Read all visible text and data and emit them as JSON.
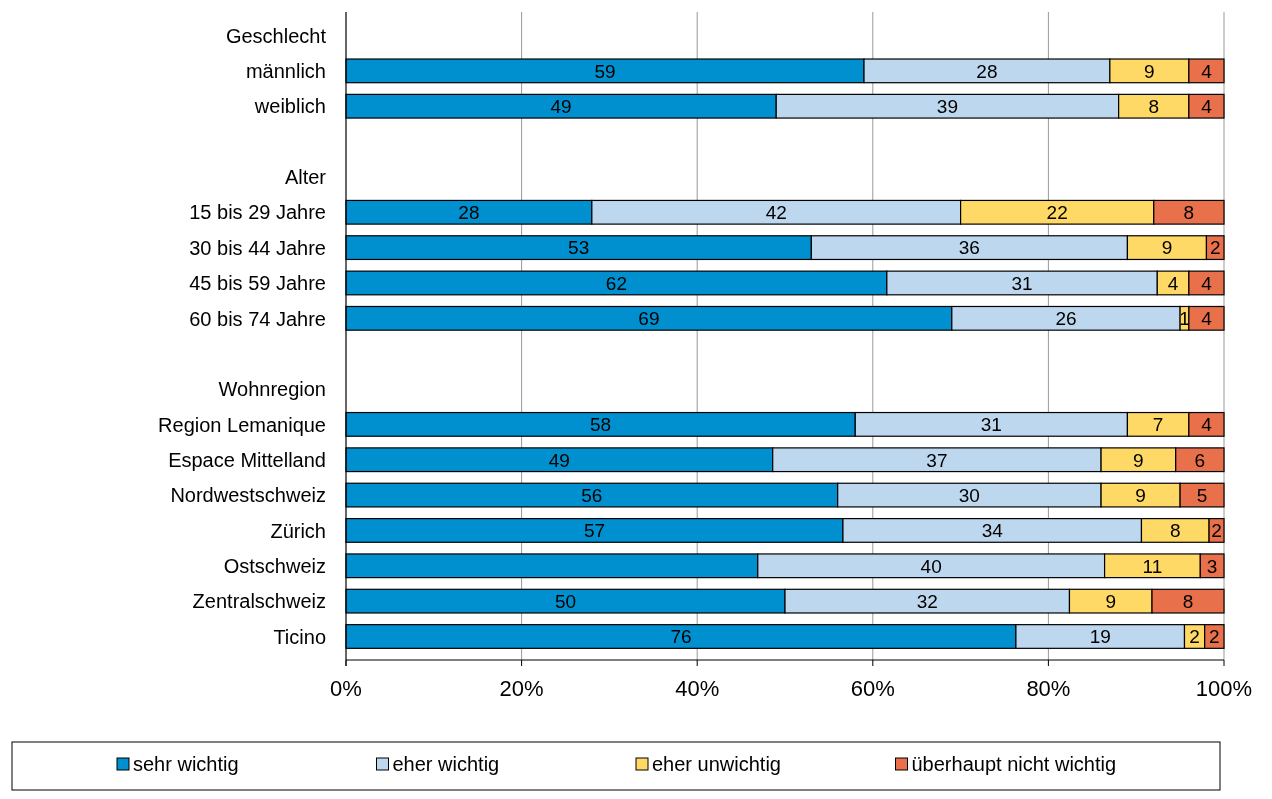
{
  "chart_data": {
    "type": "bar",
    "orientation": "horizontal",
    "stacked": true,
    "categories": [
      "Geschlecht",
      "männlich",
      "weiblich",
      null,
      "Alter",
      "15 bis 29 Jahre",
      "30 bis 44 Jahre",
      "45 bis 59 Jahre",
      "60 bis 74 Jahre",
      null,
      "Wohnregion",
      "Region Lemanique",
      "Espace Mittelland",
      "Nordwestschweiz",
      "Zürich",
      "Ostschweiz",
      "Zentralschweiz",
      "Ticino"
    ],
    "series": [
      {
        "name": "sehr wichtig",
        "color": "#0090d0",
        "values": [
          null,
          59,
          49,
          null,
          null,
          28,
          53,
          61.6,
          69,
          null,
          null,
          58,
          48.6,
          56,
          56.6,
          46.9,
          50,
          76.3
        ],
        "value_labels": [
          null,
          "59",
          "49",
          null,
          null,
          "28",
          "53",
          "62",
          "69",
          null,
          null,
          "58",
          "49",
          "56",
          "57",
          null,
          "50",
          "76"
        ]
      },
      {
        "name": "eher wichtig",
        "color": "#bdd7ee",
        "values": [
          null,
          28,
          39,
          null,
          null,
          42,
          36,
          30.8,
          26,
          null,
          null,
          31,
          37.4,
          30,
          34,
          39.5,
          32.4,
          19.2
        ],
        "value_labels": [
          null,
          "28",
          "39",
          null,
          null,
          "42",
          "36",
          "31",
          "26",
          null,
          null,
          "31",
          "37",
          "30",
          "34",
          "40",
          "32",
          "19"
        ]
      },
      {
        "name": "eher unwichtig",
        "color": "#ffd966",
        "values": [
          null,
          9,
          8,
          null,
          null,
          22,
          9,
          3.6,
          1,
          null,
          null,
          7,
          8.5,
          9,
          7.7,
          10.9,
          9.4,
          2.3
        ],
        "value_labels": [
          null,
          "9",
          "8",
          null,
          null,
          "22",
          "9",
          "4",
          "1",
          null,
          null,
          "7",
          "9",
          "9",
          "8",
          "11",
          "9",
          "2"
        ]
      },
      {
        "name": "überhaupt nicht wichtig",
        "color": "#e8704a",
        "values": [
          null,
          4,
          4,
          null,
          null,
          8,
          2,
          4,
          4,
          null,
          null,
          4,
          5.5,
          5,
          1.7,
          2.7,
          8.2,
          2.2
        ],
        "value_labels": [
          null,
          "4",
          "4",
          null,
          null,
          "8",
          "2",
          "4",
          "4",
          null,
          null,
          "4",
          "6",
          "5",
          "2",
          "3",
          "8",
          "2"
        ]
      }
    ],
    "xlim": [
      0,
      100
    ],
    "xticks": [
      {
        "value": 0,
        "label": "0%"
      },
      {
        "value": 20,
        "label": "20%"
      },
      {
        "value": 40,
        "label": "40%"
      },
      {
        "value": 60,
        "label": "60%"
      },
      {
        "value": 80,
        "label": "80%"
      },
      {
        "value": 100,
        "label": "100%"
      }
    ],
    "grid": "x",
    "legend": "bottom"
  }
}
